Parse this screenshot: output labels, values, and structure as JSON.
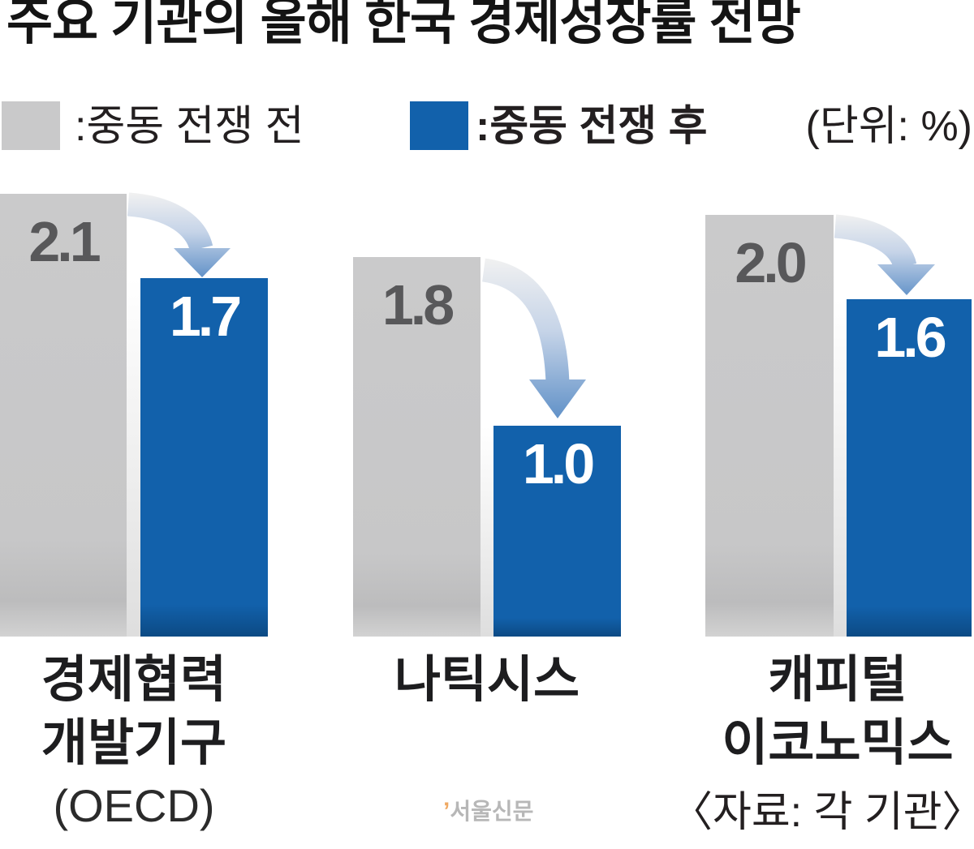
{
  "title": "주요 기관의 올해 한국 경제성장률 전망",
  "legend": {
    "before": {
      "label": ":중동 전쟁 전",
      "color": "#c9c9ca"
    },
    "after": {
      "label": ":중동 전쟁 후",
      "color": "#1261ab"
    },
    "unit_label": "(단위: %)"
  },
  "source": "〈자료: 각 기관〉",
  "watermark": {
    "mark": "’",
    "name": "서울신문"
  },
  "chart_data": {
    "type": "bar",
    "title": "주요 기관의 올해 한국 경제성장률 전망",
    "unit": "%",
    "ylim": [
      0,
      2.4
    ],
    "grid": false,
    "legend_position": "top",
    "categories": [
      "경제협력 개발기구(OECD)",
      "나틱시스",
      "캐피털 이코노믹스"
    ],
    "series": [
      {
        "name": "중동 전쟁 전",
        "color": "#c9c9ca",
        "values": [
          2.1,
          1.8,
          2.0
        ]
      },
      {
        "name": "중동 전쟁 후",
        "color": "#1261ab",
        "values": [
          1.7,
          1.0,
          1.6
        ]
      }
    ],
    "annotations": "각 기관 막대 쌍 사이에 하락(감소) 곡선 화살표",
    "groups": [
      {
        "label_line1": "경제협력",
        "label_line2": "개발기구",
        "sub_label": "(OECD)",
        "before_value": 2.1,
        "after_value": 1.7,
        "before_label": "2.1",
        "after_label": "1.7"
      },
      {
        "label_line1": "나틱시스",
        "before_value": 1.8,
        "after_value": 1.0,
        "before_label": "1.8",
        "after_label": "1.0"
      },
      {
        "label_line1": "캐피털",
        "label_line2": "이코노믹스",
        "before_value": 2.0,
        "after_value": 1.6,
        "before_label": "2.0",
        "after_label": "1.6"
      }
    ]
  }
}
